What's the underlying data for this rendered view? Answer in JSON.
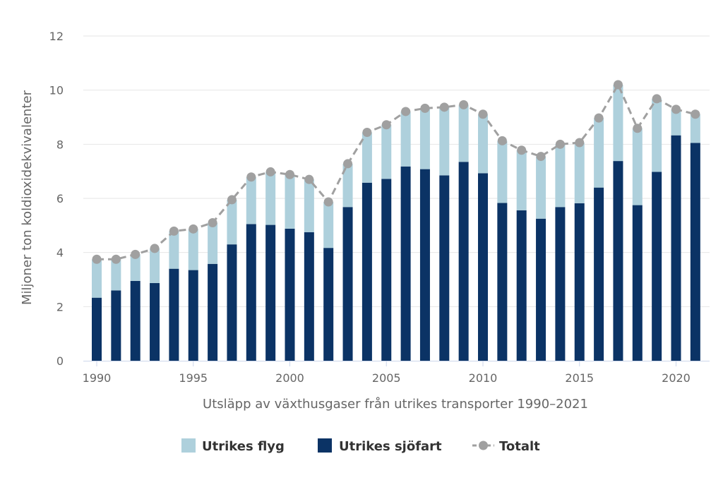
{
  "chart_data": {
    "type": "bar",
    "stacked": true,
    "xlabel": "Utsläpp av växthusgaser från utrikes transporter 1990–2021",
    "ylabel": "Miljoner ton koldioxidekvivalenter",
    "ylim": [
      0,
      12
    ],
    "yticks": [
      0,
      2,
      4,
      6,
      8,
      10,
      12
    ],
    "xticks": [
      1990,
      1995,
      2000,
      2005,
      2010,
      2015,
      2020
    ],
    "grid": true,
    "legend_position": "bottom",
    "categories": [
      1990,
      1991,
      1992,
      1993,
      1994,
      1995,
      1996,
      1997,
      1998,
      1999,
      2000,
      2001,
      2002,
      2003,
      2004,
      2005,
      2006,
      2007,
      2008,
      2009,
      2010,
      2011,
      2012,
      2013,
      2014,
      2015,
      2016,
      2017,
      2018,
      2019,
      2020,
      2021
    ],
    "series": [
      {
        "name": "Utrikes sjöfart",
        "kind": "bar",
        "color": "#0b3365",
        "values": [
          2.33,
          2.6,
          2.95,
          2.87,
          3.4,
          3.35,
          3.58,
          4.3,
          5.05,
          5.02,
          4.88,
          4.75,
          4.17,
          5.68,
          6.58,
          6.72,
          7.18,
          7.08,
          6.85,
          7.35,
          6.93,
          5.83,
          5.56,
          5.25,
          5.68,
          5.82,
          6.4,
          7.38,
          5.75,
          6.98,
          8.33,
          8.05
        ]
      },
      {
        "name": "Utrikes flyg",
        "kind": "bar",
        "color": "#aed0dc",
        "values": [
          1.42,
          1.15,
          0.98,
          1.28,
          1.39,
          1.52,
          1.52,
          1.65,
          1.74,
          1.96,
          2.0,
          1.95,
          1.7,
          1.6,
          1.86,
          2.0,
          2.03,
          2.25,
          2.52,
          2.11,
          2.18,
          2.3,
          2.22,
          2.3,
          2.32,
          2.24,
          2.57,
          2.82,
          2.84,
          2.7,
          0.96,
          1.06
        ]
      },
      {
        "name": "Totalt",
        "kind": "line",
        "color": "#a0a0a0",
        "values": [
          3.75,
          3.75,
          3.93,
          4.15,
          4.79,
          4.87,
          5.1,
          5.95,
          6.79,
          6.98,
          6.88,
          6.7,
          5.87,
          7.28,
          8.44,
          8.72,
          9.21,
          9.33,
          9.37,
          9.46,
          9.11,
          8.13,
          7.78,
          7.55,
          8.0,
          8.06,
          8.97,
          10.2,
          8.59,
          9.68,
          9.29,
          9.11
        ]
      }
    ]
  }
}
